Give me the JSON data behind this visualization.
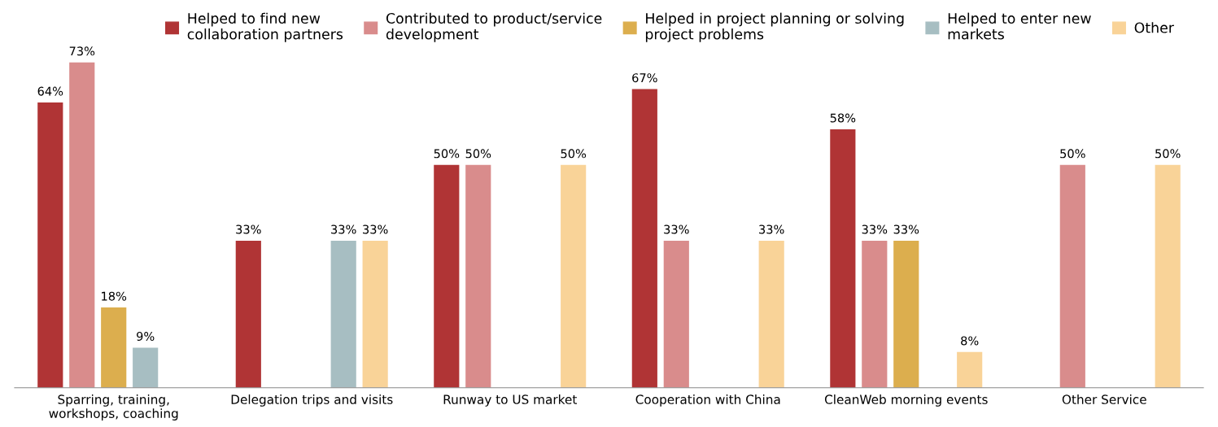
{
  "chart_data": {
    "type": "bar",
    "categories": [
      "Sparring, training,\nworkshops, coaching",
      "Delegation trips and visits",
      "Runway to US market",
      "Cooperation with China",
      "CleanWeb morning events",
      "Other Service"
    ],
    "series": [
      {
        "name": "Helped to find new\ncollaboration partners",
        "color": "#b03435",
        "values": [
          64,
          33,
          50,
          67,
          58,
          null
        ],
        "value_labels": [
          "64%",
          "33%",
          "50%",
          "67%",
          "58%",
          null
        ]
      },
      {
        "name": "Contributed to product/service\ndevelopment",
        "color": "#d98c8c",
        "values": [
          73,
          null,
          50,
          33,
          33,
          50
        ],
        "value_labels": [
          "73%",
          null,
          "50%",
          "33%",
          "33%",
          "50%"
        ]
      },
      {
        "name": "Helped in project planning or solving\nproject problems",
        "color": "#dcae4e",
        "values": [
          18,
          null,
          null,
          null,
          33,
          null
        ],
        "value_labels": [
          "18%",
          null,
          null,
          null,
          "33%",
          null
        ]
      },
      {
        "name": "Helped to enter new\nmarkets",
        "color": "#a7bec2",
        "values": [
          9,
          33,
          null,
          null,
          null,
          null
        ],
        "value_labels": [
          "9%",
          "33%",
          null,
          null,
          null,
          null
        ]
      },
      {
        "name": "Other",
        "color": "#f9d398",
        "values": [
          null,
          33,
          50,
          33,
          8,
          50
        ],
        "value_labels": [
          null,
          "33%",
          "50%",
          "33%",
          "8%",
          "50%"
        ]
      }
    ],
    "legend": "top",
    "grid": false
  }
}
